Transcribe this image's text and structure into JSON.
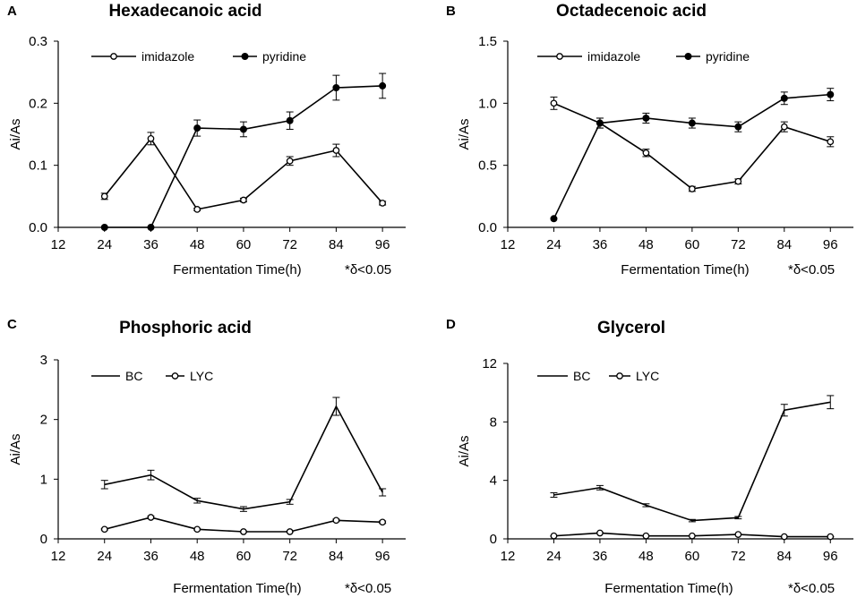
{
  "chart_data": [
    {
      "type": "line",
      "panel": "A",
      "title": "Hexadecanoic acid",
      "xlabel": "Fermentation Time(h)",
      "ylabel": "Ai/As",
      "note": "*δ<0.05",
      "x_ticks": [
        12,
        24,
        36,
        48,
        60,
        72,
        84,
        96
      ],
      "y_ticks": [
        0.0,
        0.1,
        0.2,
        0.3
      ],
      "y_tick_labels": [
        "0.0",
        "0.1",
        "0.2",
        "0.3"
      ],
      "ylim": [
        0,
        0.3
      ],
      "x": [
        24,
        36,
        48,
        60,
        72,
        84,
        96
      ],
      "series": [
        {
          "name": "imidazole",
          "marker": "open",
          "values": [
            0.05,
            0.143,
            0.029,
            0.044,
            0.107,
            0.124,
            0.039
          ],
          "errors": [
            0.005,
            0.01,
            0.002,
            0.003,
            0.007,
            0.01,
            0.003
          ]
        },
        {
          "name": "pyridine",
          "marker": "filled",
          "values": [
            0.0,
            0.0,
            0.16,
            0.158,
            0.172,
            0.225,
            0.228
          ],
          "errors": [
            0,
            0,
            0.013,
            0.012,
            0.014,
            0.02,
            0.02
          ]
        }
      ]
    },
    {
      "type": "line",
      "panel": "B",
      "title": "Octadecenoic acid",
      "xlabel": "Fermentation Time(h)",
      "ylabel": "Ai/As",
      "note": "*δ<0.05",
      "x_ticks": [
        12,
        24,
        36,
        48,
        60,
        72,
        84,
        96
      ],
      "y_ticks": [
        0.0,
        0.5,
        1.0,
        1.5
      ],
      "y_tick_labels": [
        "0.0",
        "0.5",
        "1.0",
        "1.5"
      ],
      "ylim": [
        0,
        1.5
      ],
      "x": [
        24,
        36,
        48,
        60,
        72,
        84,
        96
      ],
      "series": [
        {
          "name": "imidazole",
          "marker": "open",
          "values": [
            1.0,
            0.84,
            0.6,
            0.31,
            0.37,
            0.81,
            0.69
          ],
          "errors": [
            0.05,
            0.04,
            0.03,
            0.02,
            0.02,
            0.04,
            0.04
          ]
        },
        {
          "name": "pyridine",
          "marker": "filled",
          "values": [
            0.07,
            0.84,
            0.88,
            0.84,
            0.81,
            1.04,
            1.07
          ],
          "errors": [
            0,
            0.04,
            0.04,
            0.04,
            0.04,
            0.05,
            0.05
          ]
        }
      ]
    },
    {
      "type": "line",
      "panel": "C",
      "title": "Phosphoric acid",
      "xlabel": "Fermentation Time(h)",
      "ylabel": "Ai/As",
      "note": "*δ<0.05",
      "x_ticks": [
        12,
        24,
        36,
        48,
        60,
        72,
        84,
        96
      ],
      "y_ticks": [
        0,
        1,
        2,
        3
      ],
      "y_tick_labels": [
        "0",
        "1",
        "2",
        "3"
      ],
      "ylim": [
        0,
        3
      ],
      "x": [
        24,
        36,
        48,
        60,
        72,
        84,
        96
      ],
      "series": [
        {
          "name": "BC",
          "marker": "none",
          "values": [
            0.91,
            1.07,
            0.64,
            0.5,
            0.62,
            2.22,
            0.78
          ],
          "errors": [
            0.07,
            0.08,
            0.04,
            0.04,
            0.04,
            0.15,
            0.06
          ]
        },
        {
          "name": "LYC",
          "marker": "open",
          "values": [
            0.16,
            0.36,
            0.16,
            0.12,
            0.12,
            0.31,
            0.28
          ],
          "errors": [
            0.01,
            0.02,
            0.01,
            0.01,
            0.01,
            0.02,
            0.02
          ]
        }
      ]
    },
    {
      "type": "line",
      "panel": "D",
      "title": "Glycerol",
      "xlabel": "Fermentation Time(h)",
      "ylabel": "Ai/As",
      "note": "*δ<0.05",
      "x_ticks": [
        12,
        24,
        36,
        48,
        60,
        72,
        84,
        96
      ],
      "y_ticks": [
        0,
        4,
        8,
        12
      ],
      "y_tick_labels": [
        "0",
        "4",
        "8",
        "12"
      ],
      "ylim": [
        0,
        12
      ],
      "x": [
        24,
        36,
        48,
        60,
        72,
        84,
        96
      ],
      "series": [
        {
          "name": "BC",
          "marker": "none",
          "values": [
            3.0,
            3.5,
            2.3,
            1.25,
            1.45,
            8.8,
            9.35
          ],
          "errors": [
            0.15,
            0.15,
            0.1,
            0.08,
            0.08,
            0.4,
            0.45
          ]
        },
        {
          "name": "LYC",
          "marker": "open",
          "values": [
            0.2,
            0.4,
            0.2,
            0.2,
            0.3,
            0.15,
            0.15
          ],
          "errors": [
            0.02,
            0.03,
            0.02,
            0.02,
            0.02,
            0.02,
            0.02
          ]
        }
      ]
    }
  ]
}
